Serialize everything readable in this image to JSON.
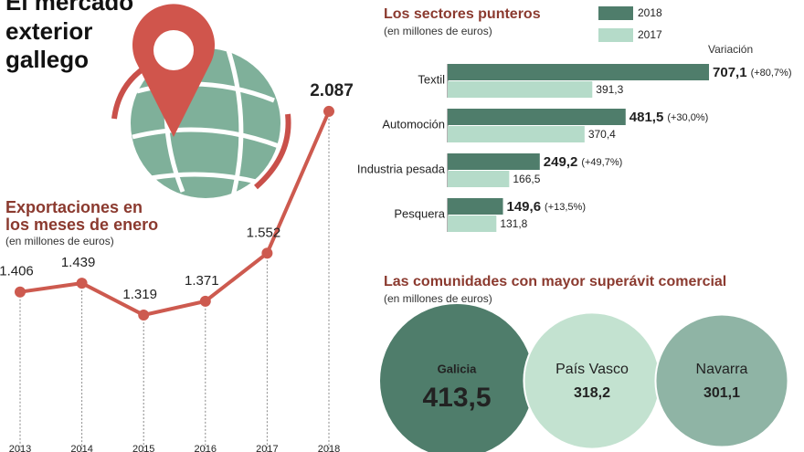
{
  "header": {
    "title_lines": [
      "El mercado",
      "exterior",
      "gallego"
    ]
  },
  "chart_data": [
    {
      "type": "line",
      "title_lines": [
        "Exportaciones en",
        "los meses de enero"
      ],
      "subtitle": "(en millones de euros)",
      "categories": [
        "2013",
        "2014",
        "2015",
        "2016",
        "2017",
        "2018"
      ],
      "values": [
        1406,
        1439,
        1319,
        1371,
        1552,
        2087
      ],
      "value_labels": [
        "1.406",
        "1.439",
        "1.319",
        "1.371",
        "1.552",
        "2.087"
      ],
      "color": "#cd5a4f"
    },
    {
      "type": "hbar",
      "title": "Los sectores punteros",
      "subtitle": "(en millones de euros)",
      "categories": [
        "Textil",
        "Automoción",
        "Industria pesada",
        "Pesquera"
      ],
      "series": [
        {
          "name": "2018",
          "color": "#4f7d6b",
          "values": [
            707.1,
            481.5,
            249.2,
            149.6
          ],
          "value_labels": [
            "707,1",
            "481,5",
            "249,2",
            "149,6"
          ]
        },
        {
          "name": "2017",
          "color": "#b5dbc9",
          "values": [
            391.3,
            370.4,
            166.5,
            131.8
          ],
          "value_labels": [
            "391,3",
            "370,4",
            "166,5",
            "131,8"
          ]
        }
      ],
      "variation_title": "Variación",
      "variation_labels": [
        "(+80,7%)",
        "(+30,0%)",
        "(+49,7%)",
        "(+13,5%)"
      ]
    },
    {
      "type": "bubble",
      "title": "Las comunidades con mayor superávit comercial",
      "subtitle": "(en millones de euros)",
      "categories": [
        "Galicia",
        "País Vasco",
        "Navarra"
      ],
      "values": [
        413.5,
        318.2,
        301.1
      ],
      "value_labels": [
        "413,5",
        "318,2",
        "301,1"
      ],
      "colors": [
        "#4f7d6b",
        "#c3e2d0",
        "#8fb4a5"
      ]
    }
  ]
}
